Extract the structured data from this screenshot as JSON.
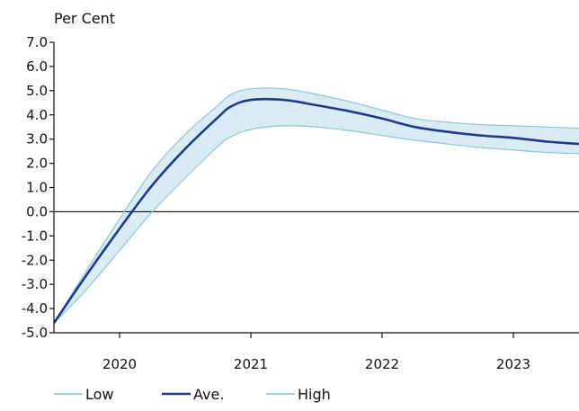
{
  "chart_data": {
    "type": "line",
    "ylabel": "Per Cent",
    "ylim": [
      -5.0,
      7.0
    ],
    "yticks": [
      "7.0",
      "6.0",
      "5.0",
      "4.0",
      "3.0",
      "2.0",
      "1.0",
      "0.0",
      "-1.0",
      "-2.0",
      "-3.0",
      "-4.0",
      "-5.0"
    ],
    "xlim": [
      2019.5,
      2023.5
    ],
    "xticks": [
      {
        "value": 2020,
        "label": "2020"
      },
      {
        "value": 2021,
        "label": "2021"
      },
      {
        "value": 2022,
        "label": "2022"
      },
      {
        "value": 2023,
        "label": "2023"
      }
    ],
    "zero_line": true,
    "grid": false,
    "legend": "bottom-left",
    "colors": {
      "low": "#8cc7d8",
      "ave": "#1f3a8a",
      "high": "#8cc7d8",
      "band": "#d9ebf3"
    },
    "series": [
      {
        "name": "Low",
        "x": [
          2019.5,
          2019.75,
          2020.0,
          2020.25,
          2020.5,
          2020.75,
          2020.85,
          2021.0,
          2021.25,
          2021.5,
          2021.75,
          2022.0,
          2022.25,
          2022.5,
          2022.75,
          2023.0,
          2023.25,
          2023.5
        ],
        "y": [
          -4.6,
          -3.2,
          -1.6,
          0.0,
          1.4,
          2.7,
          3.1,
          3.4,
          3.55,
          3.5,
          3.35,
          3.15,
          2.95,
          2.8,
          2.65,
          2.55,
          2.45,
          2.4
        ]
      },
      {
        "name": "Ave.",
        "x": [
          2019.5,
          2019.75,
          2020.0,
          2020.25,
          2020.5,
          2020.75,
          2020.85,
          2021.0,
          2021.25,
          2021.5,
          2021.75,
          2022.0,
          2022.25,
          2022.5,
          2022.75,
          2023.0,
          2023.25,
          2023.5
        ],
        "y": [
          -4.6,
          -2.6,
          -0.7,
          1.1,
          2.6,
          3.9,
          4.35,
          4.62,
          4.62,
          4.4,
          4.15,
          3.85,
          3.5,
          3.3,
          3.15,
          3.05,
          2.9,
          2.8
        ]
      },
      {
        "name": "High",
        "x": [
          2019.5,
          2019.75,
          2020.0,
          2020.25,
          2020.5,
          2020.75,
          2020.85,
          2021.0,
          2021.25,
          2021.5,
          2021.75,
          2022.0,
          2022.25,
          2022.5,
          2022.75,
          2023.0,
          2023.25,
          2023.5
        ],
        "y": [
          -4.6,
          -2.4,
          -0.3,
          1.7,
          3.2,
          4.4,
          4.85,
          5.08,
          5.08,
          4.85,
          4.55,
          4.2,
          3.85,
          3.7,
          3.6,
          3.55,
          3.5,
          3.45
        ]
      }
    ]
  }
}
